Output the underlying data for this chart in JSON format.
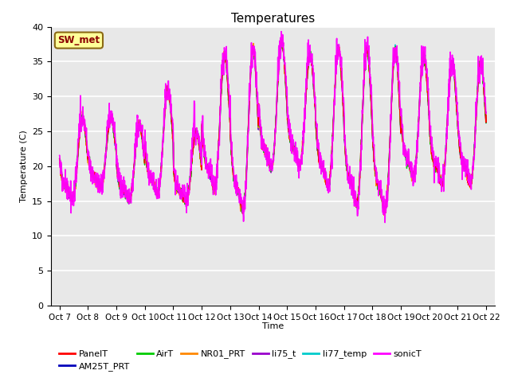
{
  "title": "Temperatures",
  "ylabel": "Temperature (C)",
  "xlabel": "Time",
  "ylim": [
    0,
    40
  ],
  "yticks": [
    0,
    5,
    10,
    15,
    20,
    25,
    30,
    35,
    40
  ],
  "x_labels": [
    "Oct 7",
    "Oct 8",
    "Oct 9",
    "Oct 10Oct",
    "11Oct",
    "12Oct",
    "13Oct",
    "14Oct",
    "15Oct",
    "16Oct",
    "17Oct",
    "18Oct",
    "19Oct",
    "20Oct",
    "21Oct",
    "22"
  ],
  "annotation_text": "SW_met",
  "annotation_bg": "#FFFF99",
  "annotation_edge": "#8B6914",
  "annotation_text_color": "#8B0000",
  "series": {
    "PanelT": {
      "color": "#FF0000",
      "lw": 1.0
    },
    "AM25T_PRT": {
      "color": "#0000BB",
      "lw": 1.0
    },
    "AirT": {
      "color": "#00CC00",
      "lw": 1.0
    },
    "NR01_PRT": {
      "color": "#FF8800",
      "lw": 1.0
    },
    "li75_t": {
      "color": "#9900CC",
      "lw": 1.0
    },
    "li77_temp": {
      "color": "#00CCCC",
      "lw": 1.0
    },
    "sonicT": {
      "color": "#FF00FF",
      "lw": 1.2
    }
  },
  "bg_color": "#E8E8E8",
  "fig_bg": "#FFFFFF",
  "grid_color": "#FFFFFF",
  "n_points": 2000,
  "day_maxes": [
    27,
    27,
    26,
    31,
    25,
    36,
    37,
    38,
    36,
    37,
    37,
    37,
    36,
    35,
    35,
    34
  ],
  "day_mins": [
    13,
    15,
    13,
    13,
    13,
    13,
    9,
    16,
    17,
    13,
    10,
    9,
    15,
    14,
    14,
    17
  ]
}
